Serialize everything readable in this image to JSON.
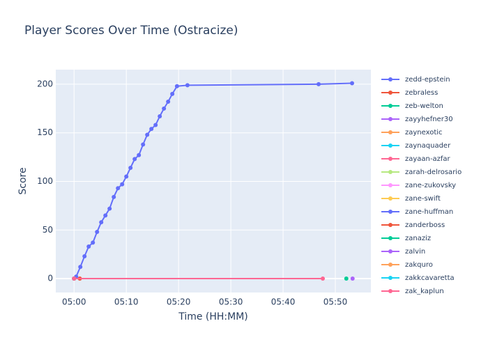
{
  "chart_data": {
    "type": "line",
    "title": "Player Scores Over Time (Ostracize)",
    "x_label": "Time (HH:MM)",
    "y_label": "Score",
    "xlim": [
      296.5,
      356.8
    ],
    "ylim": [
      -14.3,
      215
    ],
    "xticks": [
      {
        "value": 300,
        "label": "05:00"
      },
      {
        "value": 310,
        "label": "05:10"
      },
      {
        "value": 320,
        "label": "05:20"
      },
      {
        "value": 330,
        "label": "05:30"
      },
      {
        "value": 340,
        "label": "05:40"
      },
      {
        "value": 350,
        "label": "05:50"
      }
    ],
    "yticks": [
      0,
      50,
      100,
      150,
      200
    ],
    "grid": true,
    "series": [
      {
        "name": "zedd-epstein",
        "color": "#636efa",
        "x": [
          300.4,
          301.2,
          302.0,
          302.8,
          303.6,
          304.4,
          305.2,
          306.0,
          306.8,
          307.6,
          308.4,
          309.2,
          310.0,
          310.8,
          311.6,
          312.4,
          313.2,
          314.0,
          314.8,
          315.6,
          316.4,
          317.2,
          318.0,
          318.8,
          319.7,
          321.7,
          346.8,
          353.2
        ],
        "values": [
          2,
          12,
          23,
          33,
          37,
          48,
          58,
          65,
          72,
          84,
          93,
          97,
          105,
          114,
          123,
          127,
          138,
          148,
          154,
          158,
          167,
          175,
          182,
          190,
          198,
          199,
          200,
          201
        ]
      },
      {
        "name": "zebraless",
        "color": "#EF553B",
        "x": [
          301.1
        ],
        "values": [
          0
        ]
      },
      {
        "name": "zeb-welton",
        "color": "#00cc96",
        "x": [
          300
        ],
        "values": [
          0
        ]
      },
      {
        "name": "zayyhefner30",
        "color": "#ab63fa",
        "x": [
          300
        ],
        "values": [
          0
        ]
      },
      {
        "name": "zaynexotic",
        "color": "#FFA15A",
        "x": [
          300
        ],
        "values": [
          0
        ]
      },
      {
        "name": "zaynaquader",
        "color": "#19d3f3",
        "x": [
          300
        ],
        "values": [
          0
        ]
      },
      {
        "name": "zayaan-azfar",
        "color": "#FF6692",
        "x": [
          300
        ],
        "values": [
          0
        ]
      },
      {
        "name": "zarah-delrosario",
        "color": "#B6E880",
        "x": [
          300
        ],
        "values": [
          0
        ]
      },
      {
        "name": "zane-zukovsky",
        "color": "#FF97FF",
        "x": [
          300
        ],
        "values": [
          0
        ]
      },
      {
        "name": "zane-swift",
        "color": "#FECB52",
        "x": [
          300
        ],
        "values": [
          0
        ]
      },
      {
        "name": "zane-huffman",
        "color": "#636efa",
        "x": [
          300
        ],
        "values": [
          0
        ]
      },
      {
        "name": "zanderboss",
        "color": "#EF553B",
        "x": [
          300
        ],
        "values": [
          0
        ]
      },
      {
        "name": "zanaziz",
        "color": "#00cc96",
        "x": [
          352.1
        ],
        "values": [
          0
        ]
      },
      {
        "name": "zalvin",
        "color": "#ab63fa",
        "x": [
          353.3
        ],
        "values": [
          0
        ]
      },
      {
        "name": "zakquro",
        "color": "#FFA15A",
        "x": [
          300
        ],
        "values": [
          0
        ]
      },
      {
        "name": "zakkcavaretta",
        "color": "#19d3f3",
        "x": [
          300
        ],
        "values": [
          0
        ]
      },
      {
        "name": "zak_kaplun",
        "color": "#FF6692",
        "x": [
          300,
          347.6
        ],
        "values": [
          0,
          0
        ]
      }
    ]
  }
}
